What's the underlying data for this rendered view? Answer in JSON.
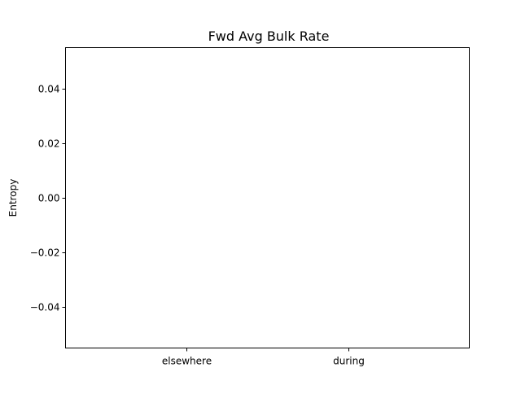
{
  "chart_data": {
    "type": "bar",
    "title": "Fwd Avg Bulk Rate",
    "xlabel": "",
    "ylabel": "Entropy",
    "categories": [
      "elsewhere",
      "during"
    ],
    "values": [
      0,
      0
    ],
    "ylim": [
      -0.055,
      0.055
    ],
    "yticks": [
      -0.04,
      -0.02,
      0.0,
      0.02,
      0.04
    ],
    "ytick_labels": [
      "−0.04",
      "−0.02",
      "0.00",
      "0.02",
      "0.04"
    ],
    "grid": false,
    "legend": "none",
    "colors": {
      "axis": "#000000",
      "background": "#ffffff",
      "bar": "#1f77b4"
    }
  }
}
